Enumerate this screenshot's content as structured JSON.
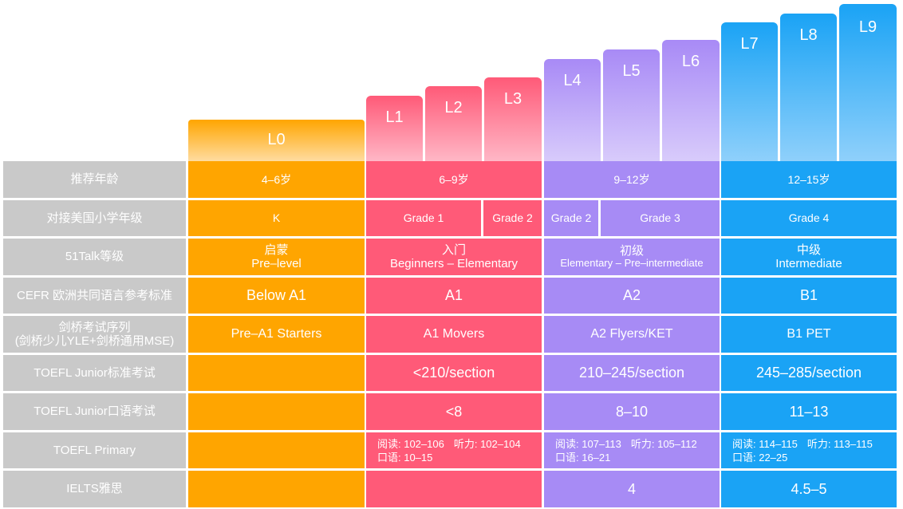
{
  "levels": [
    "L0",
    "L1",
    "L2",
    "L3",
    "L4",
    "L5",
    "L6",
    "L7",
    "L8",
    "L9"
  ],
  "row_labels": {
    "age": "推荐年龄",
    "us_grade": "对接美国小学年级",
    "talk_level": "51Talk等级",
    "cefr": "CEFR 欧洲共同语言参考标准",
    "cambridge_line1": "剑桥考试序列",
    "cambridge_line2": "(剑桥少儿YLE+剑桥通用MSE)",
    "toefl_junior": "TOEFL Junior标准考试",
    "toefl_junior_oral": "TOEFL Junior口语考试",
    "toefl_primary": "TOEFL Primary",
    "ielts": "IELTS雅思"
  },
  "age": {
    "orange": "4–6岁",
    "red": "6–9岁",
    "purple": "9–12岁",
    "blue": "12–15岁"
  },
  "us_grade": {
    "orange": "K",
    "red_1": "Grade 1",
    "red_2": "Grade 2",
    "purple_1": "Grade 2",
    "purple_2": "Grade 3",
    "blue": "Grade 4"
  },
  "talk_level": {
    "orange": {
      "zh": "启蒙",
      "en": "Pre–level"
    },
    "red": {
      "zh": "入门",
      "en": "Beginners – Elementary"
    },
    "purple": {
      "zh": "初级",
      "en": "Elementary – Pre–intermediate"
    },
    "blue": {
      "zh": "中级",
      "en": "Intermediate"
    }
  },
  "cefr": {
    "orange": "Below A1",
    "red": "A1",
    "purple": "A2",
    "blue": "B1"
  },
  "cambridge": {
    "orange": "Pre–A1 Starters",
    "red": "A1 Movers",
    "purple": "A2 Flyers/KET",
    "blue": "B1 PET"
  },
  "toefl_junior": {
    "orange": "",
    "red": "<210/section",
    "purple": "210–245/section",
    "blue": "245–285/section"
  },
  "toefl_junior_oral": {
    "orange": "",
    "red": "<8",
    "purple": "8–10",
    "blue": "11–13"
  },
  "toefl_primary": {
    "orange": "",
    "red": {
      "reading": "阅读: 102–106",
      "listening": "听力: 102–104",
      "speaking": "口语: 10–15"
    },
    "purple": {
      "reading": "阅读: 107–113",
      "listening": "听力: 105–112",
      "speaking": "口语: 16–21"
    },
    "blue": {
      "reading": "阅读: 114–115",
      "listening": "听力: 113–115",
      "speaking": "口语: 22–25"
    }
  },
  "ielts": {
    "orange": "",
    "red": "",
    "purple": "4",
    "blue": "4.5–5"
  },
  "colors": {
    "orange": "#ffa500",
    "red": "#ff5a78",
    "purple": "#a78bf5",
    "blue": "#1aa3f5",
    "label_gray": "#c9c9c9"
  }
}
